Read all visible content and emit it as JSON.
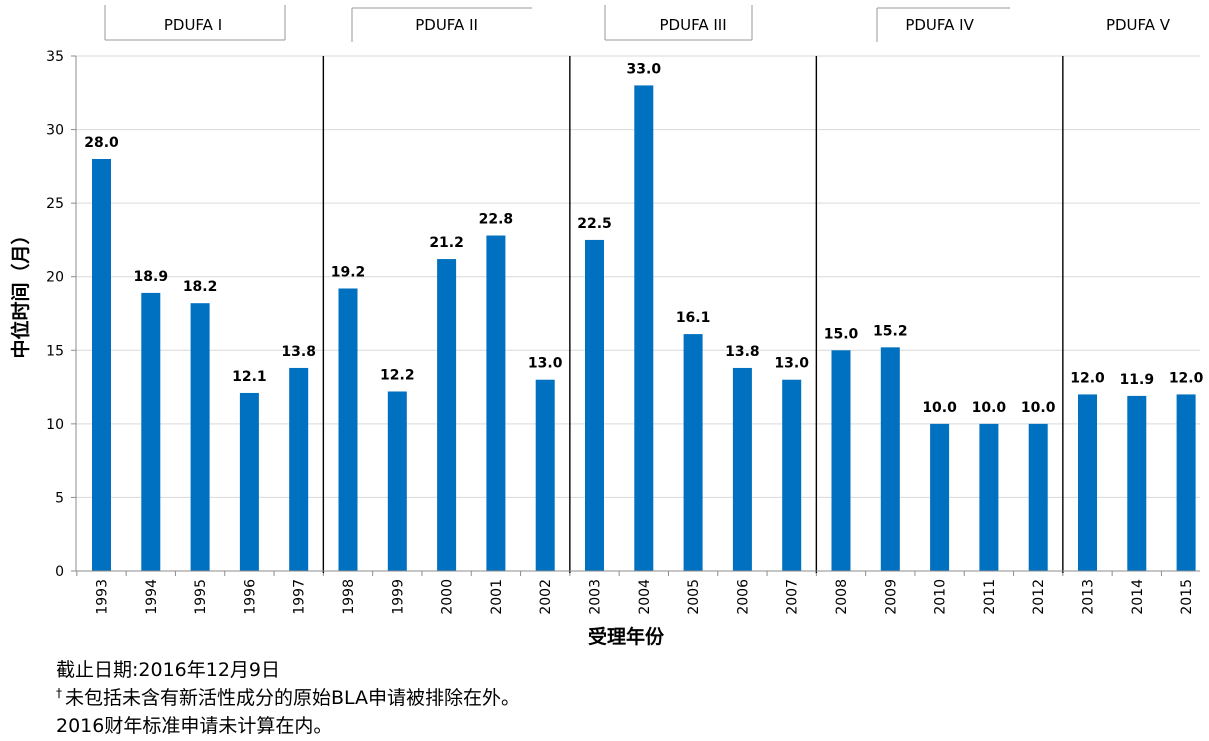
{
  "chart_data": {
    "type": "bar",
    "xlabel": "受理年份",
    "ylabel": "中位时间（月）",
    "ylim": [
      0,
      35
    ],
    "yticks": [
      0,
      5,
      10,
      15,
      20,
      25,
      30,
      35
    ],
    "grid": true,
    "bar_color": "#0070C0",
    "categories": [
      "1993",
      "1994",
      "1995",
      "1996",
      "1997",
      "1998",
      "1999",
      "2000",
      "2001",
      "2002",
      "2003",
      "2004",
      "2005",
      "2006",
      "2007",
      "2008",
      "2009",
      "2010",
      "2011",
      "2012",
      "2013",
      "2014",
      "2015"
    ],
    "values": [
      28.0,
      18.9,
      18.2,
      12.1,
      13.8,
      19.2,
      12.2,
      21.2,
      22.8,
      13.0,
      22.5,
      33.0,
      16.1,
      13.8,
      13.0,
      15.0,
      15.2,
      10.0,
      10.0,
      10.0,
      12.0,
      11.9,
      12.0
    ],
    "value_labels": [
      "28.0",
      "18.9",
      "18.2",
      "12.1",
      "13.8",
      "19.2",
      "12.2",
      "21.2",
      "22.8",
      "13.0",
      "22.5",
      "33.0",
      "16.1",
      "13.8",
      "13.0",
      "15.0",
      "15.2",
      "10.0",
      "10.0",
      "10.0",
      "12.0",
      "11.9",
      "12.0"
    ],
    "periods": [
      {
        "label": "PDUFA I",
        "start": "1993",
        "end": "1997"
      },
      {
        "label": "PDUFA II",
        "start": "1998",
        "end": "2002"
      },
      {
        "label": "PDUFA III",
        "start": "2003",
        "end": "2007"
      },
      {
        "label": "PDUFA IV",
        "start": "2008",
        "end": "2012"
      },
      {
        "label": "PDUFA V",
        "start": "2013",
        "end": "2015"
      }
    ]
  },
  "notes": {
    "cutoff": "截止日期:2016年12月9日",
    "dagger": "†",
    "exclusion": "未包括未含有新活性成分的原始BLA申请被排除在外。",
    "fy2016": "2016财年标准申请未计算在内。"
  }
}
